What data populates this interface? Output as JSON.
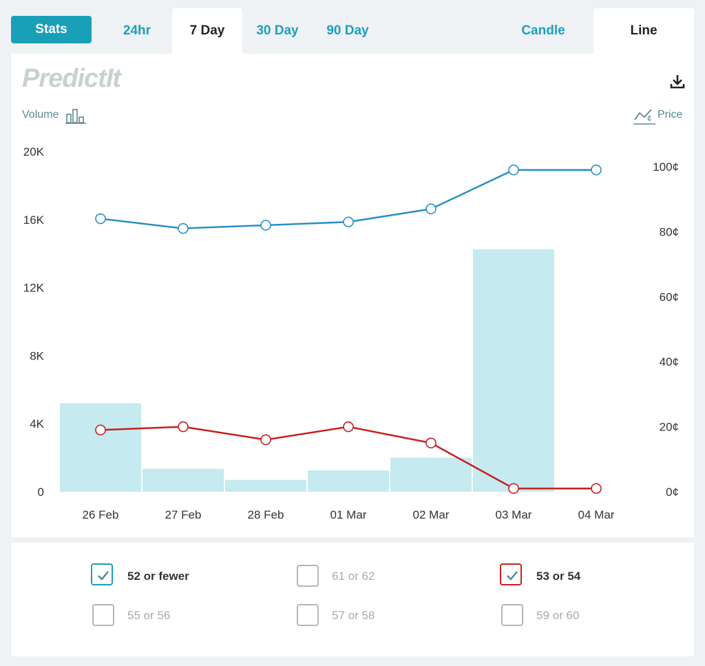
{
  "tabs": {
    "stats": "Stats",
    "ranges": [
      {
        "label": "24hr",
        "active": false
      },
      {
        "label": "7 Day",
        "active": true
      },
      {
        "label": "30 Day",
        "active": false
      },
      {
        "label": "90 Day",
        "active": false
      }
    ],
    "modes": [
      {
        "label": "Candle",
        "active": false
      },
      {
        "label": "Line",
        "active": true
      }
    ]
  },
  "brand": {
    "logo_text": "PredictIt"
  },
  "axes": {
    "left_title": "Volume",
    "right_title": "Price",
    "left_ticks": [
      "0",
      "4K",
      "8K",
      "12K",
      "16K",
      "20K"
    ],
    "right_ticks": [
      "0¢",
      "20¢",
      "40¢",
      "60¢",
      "80¢",
      "100¢"
    ]
  },
  "icons": {
    "download": "download-icon",
    "volume": "bar-chart-icon",
    "price": "price-line-icon"
  },
  "chart_data": {
    "type": "bar",
    "categories": [
      "26 Feb",
      "27 Feb",
      "28 Feb",
      "01 Mar",
      "02 Mar",
      "03 Mar",
      "04 Mar"
    ],
    "volume": {
      "values": [
        5200,
        1350,
        700,
        1250,
        2000,
        14250,
        0
      ],
      "ylim": [
        0,
        20000
      ],
      "color": "#c5eaf0"
    },
    "series": [
      {
        "name": "52 or fewer",
        "type": "line",
        "values": [
          84,
          81,
          82,
          83,
          87,
          99,
          99
        ],
        "color": "#2a8fc4"
      },
      {
        "name": "53 or 54",
        "type": "line",
        "values": [
          19,
          20,
          16,
          20,
          15,
          1,
          1
        ],
        "color": "#c81e1e"
      }
    ],
    "y2lim": [
      0,
      100
    ],
    "grid": false
  },
  "contracts": [
    {
      "label": "52 or fewer",
      "checked": true,
      "color": "#1a9fb9"
    },
    {
      "label": "61 or 62",
      "checked": false,
      "color": "#b5b5b5"
    },
    {
      "label": "53 or 54",
      "checked": true,
      "color": "#c81e1e"
    },
    {
      "label": "55 or 56",
      "checked": false,
      "color": "#b5b5b5"
    },
    {
      "label": "57 or 58",
      "checked": false,
      "color": "#b5b5b5"
    },
    {
      "label": "59 or 60",
      "checked": false,
      "color": "#b5b5b5"
    }
  ]
}
